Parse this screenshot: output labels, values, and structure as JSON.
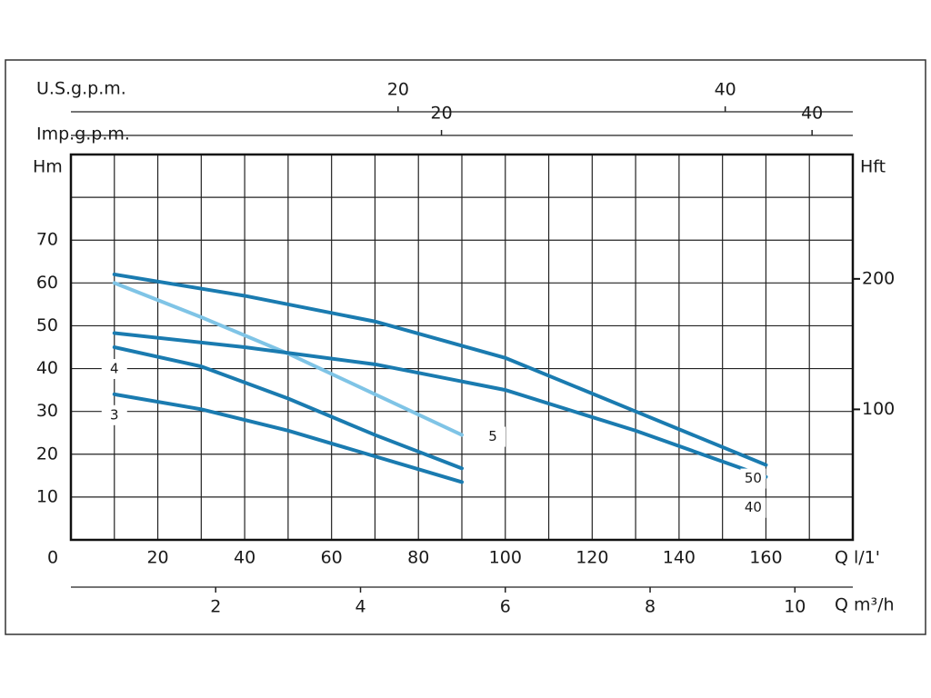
{
  "chart_data": {
    "type": "line",
    "x_axis_label": "Q l/1'",
    "y_axis_label": "Hm",
    "y2_axis_label": "Hft",
    "xlim": [
      0,
      180
    ],
    "xticks": [
      0,
      20,
      40,
      60,
      80,
      100,
      120,
      140,
      160
    ],
    "x_minor_ticks": [
      10,
      30,
      50,
      70,
      90,
      110,
      130,
      150,
      170
    ],
    "ylim": [
      0,
      90
    ],
    "yticks": [
      10,
      20,
      30,
      40,
      50,
      60,
      70
    ],
    "y_minor_ticks": [
      80
    ],
    "y2lim": [
      0,
      295.3
    ],
    "y2ticks": [
      100,
      200
    ],
    "grid": true,
    "extra_x_axes": [
      {
        "label": "U.S.g.p.m.",
        "xlim": [
          0,
          47.8
        ],
        "xticks": [
          20,
          40
        ]
      },
      {
        "label": "Imp.g.p.m.",
        "xlim": [
          0,
          42.2
        ],
        "xticks": [
          20,
          40
        ]
      },
      {
        "label": "Q m³/h",
        "xlim": [
          0,
          10.8
        ],
        "xticks": [
          2,
          4,
          6,
          8,
          10
        ]
      }
    ],
    "series": [
      {
        "name": "3",
        "color": "#1a7bb0",
        "x": [
          10,
          30,
          50,
          70,
          90
        ],
        "values": [
          34,
          30.5,
          25.5,
          19.5,
          13.5
        ]
      },
      {
        "name": "4",
        "color": "#1a7bb0",
        "x": [
          10,
          30,
          50,
          70,
          90
        ],
        "values": [
          45,
          40.5,
          33,
          24.5,
          16.7
        ]
      },
      {
        "name": "5",
        "color": "#7fc4e6",
        "x": [
          10,
          30,
          50,
          70,
          90
        ],
        "values": [
          60,
          52,
          43.5,
          34,
          24.5
        ]
      },
      {
        "name": "40",
        "color": "#1a7bb0",
        "x": [
          10,
          40,
          70,
          100,
          130,
          160
        ],
        "values": [
          48.3,
          45,
          41,
          35,
          25.5,
          14.7
        ]
      },
      {
        "name": "50",
        "color": "#1a7bb0",
        "x": [
          10,
          40,
          70,
          100,
          130,
          160
        ],
        "values": [
          62,
          57,
          51,
          42.5,
          30,
          17.5
        ]
      }
    ]
  }
}
